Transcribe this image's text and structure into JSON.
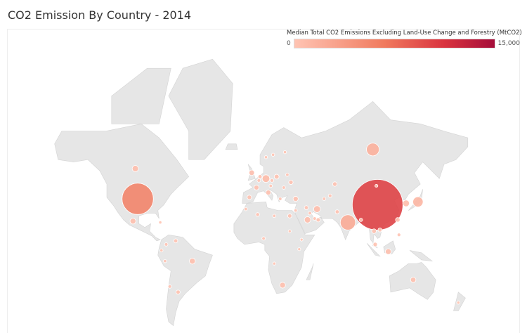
{
  "title": "CO2 Emission By Country - 2014",
  "chart_data": {
    "type": "scatter",
    "subtype": "symbol-map",
    "title": "CO2 Emission By Country - 2014",
    "measure": "Median Total CO2 Emissions Excluding Land-Use Change and Forestry (MtCO2)",
    "color_legend": {
      "title": "Median Total CO2 Emissions Excluding Land-Use Change and Forestry (MtCO2)",
      "min_label": "0",
      "max_label": "15,000",
      "min": 0,
      "max": 15000,
      "color_min": "#ffc4b3",
      "color_max": "#a50d3a",
      "placement": "top-right"
    },
    "land_color": "#e6e6e6",
    "points": [
      {
        "country": "China",
        "lon": 104,
        "lat": 35,
        "value": 10300
      },
      {
        "country": "United States",
        "lon": -98,
        "lat": 39,
        "value": 5800
      },
      {
        "country": "India",
        "lon": 79,
        "lat": 22,
        "value": 2300
      },
      {
        "country": "Russia",
        "lon": 100,
        "lat": 64,
        "value": 1800
      },
      {
        "country": "Japan",
        "lon": 138,
        "lat": 37,
        "value": 1300
      },
      {
        "country": "Germany",
        "lon": 10,
        "lat": 51,
        "value": 800
      },
      {
        "country": "Iran",
        "lon": 53,
        "lat": 32,
        "value": 650
      },
      {
        "country": "South Korea",
        "lon": 128,
        "lat": 36,
        "value": 620
      },
      {
        "country": "Saudi Arabia",
        "lon": 45,
        "lat": 24,
        "value": 560
      },
      {
        "country": "Canada",
        "lon": -100,
        "lat": 56,
        "value": 560
      },
      {
        "country": "Brazil",
        "lon": -52,
        "lat": -10,
        "value": 500
      },
      {
        "country": "Mexico",
        "lon": -102,
        "lat": 23,
        "value": 480
      },
      {
        "country": "Indonesia",
        "lon": 113,
        "lat": -2,
        "value": 470
      },
      {
        "country": "South Africa",
        "lon": 24,
        "lat": -29,
        "value": 470
      },
      {
        "country": "United Kingdom",
        "lon": -2,
        "lat": 54,
        "value": 420
      },
      {
        "country": "Australia",
        "lon": 134,
        "lat": -25,
        "value": 400
      },
      {
        "country": "Turkey",
        "lon": 35,
        "lat": 39,
        "value": 350
      },
      {
        "country": "Italy",
        "lon": 12,
        "lat": 43,
        "value": 340
      },
      {
        "country": "France",
        "lon": 2,
        "lat": 46,
        "value": 320
      },
      {
        "country": "Poland",
        "lon": 19,
        "lat": 52,
        "value": 300
      },
      {
        "country": "Thailand",
        "lon": 101,
        "lat": 15,
        "value": 270
      },
      {
        "country": "Taiwan",
        "lon": 121,
        "lat": 24,
        "value": 260
      },
      {
        "country": "Kazakhstan",
        "lon": 68,
        "lat": 48,
        "value": 250
      },
      {
        "country": "Spain",
        "lon": -4,
        "lat": 40,
        "value": 240
      },
      {
        "country": "Ukraine",
        "lon": 31,
        "lat": 49,
        "value": 230
      },
      {
        "country": "Malaysia",
        "lon": 102,
        "lat": 4,
        "value": 220
      },
      {
        "country": "Egypt",
        "lon": 30,
        "lat": 27,
        "value": 200
      },
      {
        "country": "Argentina",
        "lon": -64,
        "lat": -34,
        "value": 200
      },
      {
        "country": "United Arab Emirates",
        "lon": 54,
        "lat": 24,
        "value": 200
      },
      {
        "country": "Venezuela",
        "lon": -66,
        "lat": 7,
        "value": 180
      },
      {
        "country": "Pakistan",
        "lon": 70,
        "lat": 30,
        "value": 170
      },
      {
        "country": "Netherlands",
        "lon": 5,
        "lat": 52,
        "value": 170
      },
      {
        "country": "Vietnam",
        "lon": 106,
        "lat": 16,
        "value": 160
      },
      {
        "country": "Iraq",
        "lon": 44,
        "lat": 33,
        "value": 160
      },
      {
        "country": "Algeria",
        "lon": 3,
        "lat": 28,
        "value": 140
      },
      {
        "country": "Philippines",
        "lon": 122,
        "lat": 12,
        "value": 100
      },
      {
        "country": "Uzbekistan",
        "lon": 64,
        "lat": 41,
        "value": 100
      },
      {
        "country": "Czech Republic",
        "lon": 15,
        "lat": 50,
        "value": 100
      },
      {
        "country": "Belgium",
        "lon": 4,
        "lat": 50,
        "value": 100
      },
      {
        "country": "Nigeria",
        "lon": 8,
        "lat": 9,
        "value": 90
      },
      {
        "country": "Kuwait",
        "lon": 47,
        "lat": 29,
        "value": 90
      },
      {
        "country": "Qatar",
        "lon": 51,
        "lat": 25,
        "value": 90
      },
      {
        "country": "Chile",
        "lon": -71,
        "lat": -30,
        "value": 80
      },
      {
        "country": "Colombia",
        "lon": -74,
        "lat": 4,
        "value": 80
      },
      {
        "country": "Greece",
        "lon": 22,
        "lat": 39,
        "value": 70
      },
      {
        "country": "Romania",
        "lon": 25,
        "lat": 46,
        "value": 70
      },
      {
        "country": "Israel",
        "lon": 35,
        "lat": 31,
        "value": 70
      },
      {
        "country": "Bangladesh",
        "lon": 90,
        "lat": 24,
        "value": 70
      },
      {
        "country": "Turkmenistan",
        "lon": 59,
        "lat": 39,
        "value": 70
      },
      {
        "country": "Belarus",
        "lon": 28,
        "lat": 53,
        "value": 60
      },
      {
        "country": "Morocco",
        "lon": -7,
        "lat": 32,
        "value": 60
      },
      {
        "country": "Austria",
        "lon": 14,
        "lat": 47,
        "value": 60
      },
      {
        "country": "Libya",
        "lon": 17,
        "lat": 27,
        "value": 55
      },
      {
        "country": "Peru",
        "lon": -75,
        "lat": -10,
        "value": 50
      },
      {
        "country": "Finland",
        "lon": 26,
        "lat": 63,
        "value": 45
      },
      {
        "country": "Sweden",
        "lon": 16,
        "lat": 62,
        "value": 40
      },
      {
        "country": "Norway",
        "lon": 10,
        "lat": 61,
        "value": 40
      },
      {
        "country": "Ecuador",
        "lon": -78,
        "lat": -1,
        "value": 40
      },
      {
        "country": "Angola",
        "lon": 17,
        "lat": -12,
        "value": 35
      },
      {
        "country": "New Zealand",
        "lon": 172,
        "lat": -41,
        "value": 35
      },
      {
        "country": "Cuba",
        "lon": -79,
        "lat": 22,
        "value": 30
      },
      {
        "country": "Mongolia",
        "lon": 103,
        "lat": 47,
        "value": 20
      },
      {
        "country": "Kenya",
        "lon": 38,
        "lat": 0,
        "value": 15
      },
      {
        "country": "Sudan",
        "lon": 30,
        "lat": 15,
        "value": 15
      },
      {
        "country": "Ethiopia",
        "lon": 40,
        "lat": 8,
        "value": 10
      }
    ]
  }
}
